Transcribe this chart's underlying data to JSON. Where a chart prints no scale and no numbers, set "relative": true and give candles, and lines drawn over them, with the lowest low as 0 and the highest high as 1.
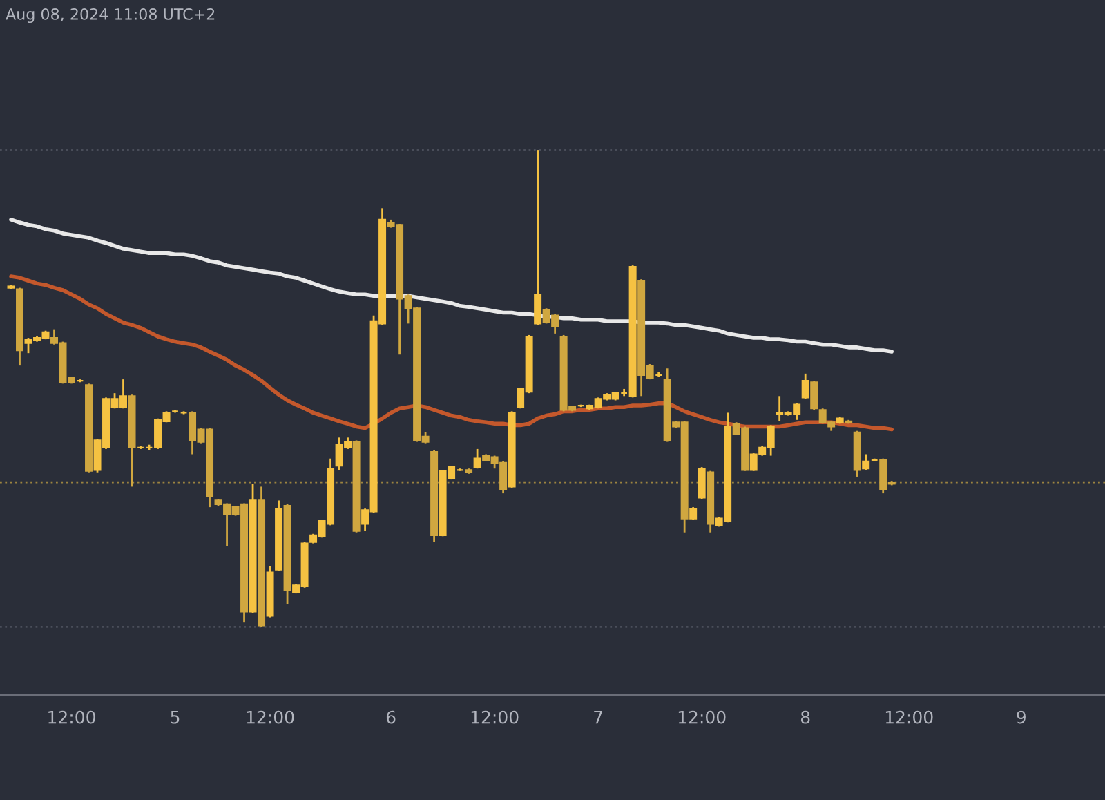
{
  "chart_data": {
    "type": "candlestick",
    "relative": true,
    "colors": [
      "#f5c242",
      "#d0a740",
      "#f5c242",
      "#f5c242",
      "#f5c242",
      "#d0a740",
      "#d0a740",
      "#d0a740",
      "#f5c242",
      "#d0a740",
      "#f5c242",
      "#f5c242",
      "#f5c242",
      "#f5c242",
      "#d0a740",
      "#f5c242",
      "#f5c242",
      "#f5c242",
      "#f5c242",
      "#f5c242",
      "#f5c242",
      "#d0a740",
      "#d0a740",
      "#d0a740",
      "#d0a740",
      "#d0a740",
      "#d0a740",
      "#d0a740",
      "#f5c242",
      "#d0a740",
      "#f5c242",
      "#f5c242",
      "#d0a740",
      "#f5c242",
      "#f5c242",
      "#f5c242",
      "#f5c242",
      "#f5c242",
      "#f5c242",
      "#f5c242",
      "#d0a740",
      "#f5c242",
      "#f5c242",
      "#f5c242",
      "#d0a740",
      "#d0a740",
      "#d0a740",
      "#d0a740",
      "#d0a740",
      "#d0a740",
      "#f5c242",
      "#f5c242",
      "#f5c242",
      "#d0a740",
      "#f5c242",
      "#d0a740",
      "#d0a740",
      "#d0a740",
      "#f5c242",
      "#f5c242",
      "#f5c242",
      "#f5c242",
      "#d0a740",
      "#d0a740",
      "#d0a740",
      "#d0a740",
      "#f5c242",
      "#f5c242",
      "#f5c242",
      "#f5c242",
      "#f5c242",
      "#f5c242",
      "#f5c242",
      "#d0a740",
      "#d0a740",
      "#f5c242",
      "#d0a740",
      "#d0a740",
      "#d0a740",
      "#f5c242",
      "#f5c242",
      "#d0a740",
      "#f5c242",
      "#f5c242",
      "#d0a740",
      "#d0a740",
      "#f5c242",
      "#f5c242",
      "#f5c242",
      "#f5c242",
      "#f5c242",
      "#f5c242",
      "#f5c242",
      "#d0a740",
      "#d0a740",
      "#d0a740",
      "#f5c242",
      "#d0a740",
      "#d0a740",
      "#f5c242",
      "#f5c242",
      "#d0a740",
      "#d0a740",
      null,
      null,
      null,
      null,
      null,
      null,
      null,
      null,
      null,
      null,
      null,
      null,
      null,
      null,
      null,
      null,
      null,
      null,
      null,
      null,
      null,
      null,
      null,
      null
    ],
    "annotations": [
      "Aug 08, 2024 11:08 UTC+2"
    ],
    "categories": [
      null,
      null,
      null,
      null,
      null,
      null,
      null,
      "12:00",
      null,
      null,
      null,
      null,
      null,
      null,
      null,
      null,
      null,
      null,
      null,
      "5",
      null,
      null,
      null,
      null,
      null,
      null,
      null,
      null,
      null,
      null,
      "12:00",
      null,
      null,
      null,
      null,
      null,
      null,
      null,
      null,
      null,
      null,
      null,
      null,
      null,
      "6",
      null,
      null,
      null,
      null,
      null,
      null,
      null,
      null,
      null,
      null,
      null,
      "12:00",
      null,
      null,
      null,
      null,
      null,
      null,
      null,
      null,
      null,
      null,
      null,
      "7",
      null,
      null,
      null,
      null,
      null,
      null,
      null,
      null,
      null,
      null,
      null,
      "12:00",
      null,
      null,
      null,
      null,
      null,
      null,
      null,
      null,
      null,
      null,
      null,
      "8",
      null,
      null,
      null,
      null,
      null,
      null,
      null,
      null,
      null,
      null,
      null,
      "12:00",
      null,
      null,
      null,
      null,
      null,
      null,
      null,
      null,
      null,
      null,
      null,
      null,
      "9",
      null,
      null,
      null,
      null,
      null,
      null,
      null,
      null,
      null
    ],
    "ohlc": [
      [
        0.711,
        0.717,
        0.708,
        0.714
      ],
      [
        0.708,
        0.711,
        0.548,
        0.58
      ],
      [
        0.595,
        0.606,
        0.574,
        0.603
      ],
      [
        0.601,
        0.609,
        0.598,
        0.606
      ],
      [
        0.606,
        0.621,
        0.603,
        0.618
      ],
      [
        0.606,
        0.624,
        0.592,
        0.595
      ],
      [
        0.595,
        0.598,
        0.51,
        0.513
      ],
      [
        0.522,
        0.525,
        0.51,
        0.513
      ],
      [
        0.516,
        0.519,
        0.513,
        0.516
      ],
      [
        0.507,
        0.51,
        0.324,
        0.327
      ],
      [
        0.329,
        0.394,
        0.324,
        0.391
      ],
      [
        0.376,
        0.481,
        0.373,
        0.478
      ],
      [
        0.461,
        0.49,
        0.458,
        0.478
      ],
      [
        0.461,
        0.519,
        0.458,
        0.484
      ],
      [
        0.484,
        0.487,
        0.294,
        0.376
      ],
      [
        0.376,
        0.379,
        0.373,
        0.376
      ],
      [
        0.376,
        0.382,
        0.37,
        0.376
      ],
      [
        0.376,
        0.437,
        0.373,
        0.434
      ],
      [
        0.431,
        0.452,
        0.429,
        0.449
      ],
      [
        0.452,
        0.455,
        0.449,
        0.452
      ],
      [
        0.449,
        0.452,
        0.446,
        0.449
      ],
      [
        0.449,
        0.452,
        0.362,
        0.391
      ],
      [
        0.414,
        0.417,
        0.385,
        0.388
      ],
      [
        0.414,
        0.417,
        0.251,
        0.274
      ],
      [
        0.265,
        0.268,
        0.254,
        0.257
      ],
      [
        0.257,
        0.259,
        0.169,
        0.236
      ],
      [
        0.251,
        0.254,
        0.233,
        0.236
      ],
      [
        0.257,
        0.259,
        0.009,
        0.032
      ],
      [
        0.032,
        0.3,
        0.029,
        0.265
      ],
      [
        0.265,
        0.294,
        0,
        0.003
      ],
      [
        0.023,
        0.128,
        0.02,
        0.114
      ],
      [
        0.12,
        0.265,
        0.117,
        0.248
      ],
      [
        0.254,
        0.257,
        0.047,
        0.076
      ],
      [
        0.073,
        0.09,
        0.07,
        0.087
      ],
      [
        0.085,
        0.178,
        0.082,
        0.175
      ],
      [
        0.178,
        0.195,
        0.175,
        0.192
      ],
      [
        0.19,
        0.224,
        0.187,
        0.222
      ],
      [
        0.216,
        0.353,
        0.213,
        0.332
      ],
      [
        0.338,
        0.397,
        0.329,
        0.382
      ],
      [
        0.376,
        0.397,
        0.373,
        0.388
      ],
      [
        0.388,
        0.391,
        0.198,
        0.201
      ],
      [
        0.216,
        0.248,
        0.201,
        0.245
      ],
      [
        0.242,
        0.653,
        0.239,
        0.641
      ],
      [
        0.636,
        0.878,
        0.633,
        0.854
      ],
      [
        0.848,
        0.854,
        0.837,
        0.84
      ],
      [
        0.843,
        0.845,
        0.571,
        0.688
      ],
      [
        0.694,
        0.697,
        0.636,
        0.668
      ],
      [
        0.668,
        0.671,
        0.388,
        0.391
      ],
      [
        0.399,
        0.408,
        0.385,
        0.388
      ],
      [
        0.367,
        0.37,
        0.178,
        0.192
      ],
      [
        0.192,
        0.329,
        0.19,
        0.327
      ],
      [
        0.312,
        0.338,
        0.309,
        0.335
      ],
      [
        0.329,
        0.332,
        0.327,
        0.329
      ],
      [
        0.329,
        0.332,
        0.321,
        0.324
      ],
      [
        0.335,
        0.373,
        0.332,
        0.353
      ],
      [
        0.359,
        0.362,
        0.347,
        0.35
      ],
      [
        0.356,
        0.359,
        0.332,
        0.344
      ],
      [
        0.344,
        0.347,
        0.28,
        0.289
      ],
      [
        0.294,
        0.452,
        0.292,
        0.449
      ],
      [
        0.461,
        0.501,
        0.458,
        0.499
      ],
      [
        0.493,
        0.612,
        0.49,
        0.609
      ],
      [
        0.636,
        1,
        0.633,
        0.697
      ],
      [
        0.665,
        0.668,
        0.636,
        0.638
      ],
      [
        0.653,
        0.656,
        0.615,
        0.63
      ],
      [
        0.609,
        0.612,
        0.452,
        0.455
      ],
      [
        0.461,
        0.464,
        0.452,
        0.455
      ],
      [
        0.464,
        0.466,
        0.461,
        0.464
      ],
      [
        0.458,
        0.466,
        0.455,
        0.464
      ],
      [
        0.461,
        0.481,
        0.458,
        0.478
      ],
      [
        0.478,
        0.49,
        0.475,
        0.487
      ],
      [
        0.478,
        0.493,
        0.475,
        0.49
      ],
      [
        0.49,
        0.499,
        0.484,
        0.49
      ],
      [
        0.484,
        0.758,
        0.481,
        0.755
      ],
      [
        0.726,
        0.729,
        0.484,
        0.528
      ],
      [
        0.548,
        0.551,
        0.519,
        0.522
      ],
      [
        0.528,
        0.534,
        0.525,
        0.528
      ],
      [
        0.519,
        0.542,
        0.388,
        0.391
      ],
      [
        0.429,
        0.431,
        0.417,
        0.42
      ],
      [
        0.429,
        0.431,
        0.198,
        0.227
      ],
      [
        0.227,
        0.251,
        0.224,
        0.248
      ],
      [
        0.271,
        0.335,
        0.268,
        0.332
      ],
      [
        0.324,
        0.327,
        0.198,
        0.216
      ],
      [
        0.213,
        0.23,
        0.21,
        0.227
      ],
      [
        0.222,
        0.449,
        0.219,
        0.42
      ],
      [
        0.426,
        0.429,
        0.402,
        0.405
      ],
      [
        0.417,
        0.42,
        0.327,
        0.329
      ],
      [
        0.329,
        0.364,
        0.327,
        0.362
      ],
      [
        0.362,
        0.379,
        0.359,
        0.376
      ],
      [
        0.376,
        0.423,
        0.359,
        0.42
      ],
      [
        0.446,
        0.484,
        0.431,
        0.449
      ],
      [
        0.446,
        0.452,
        0.443,
        0.449
      ],
      [
        0.446,
        0.469,
        0.434,
        0.466
      ],
      [
        0.481,
        0.531,
        0.478,
        0.516
      ],
      [
        0.513,
        0.516,
        0.455,
        0.458
      ],
      [
        0.455,
        0.458,
        0.426,
        0.429
      ],
      [
        0.429,
        0.431,
        0.411,
        0.42
      ],
      [
        0.429,
        0.44,
        0.426,
        0.437
      ],
      [
        0.431,
        0.434,
        0.426,
        0.429
      ],
      [
        0.408,
        0.411,
        0.315,
        0.329
      ],
      [
        0.332,
        0.362,
        0.329,
        0.347
      ],
      [
        0.35,
        0.353,
        0.347,
        0.35
      ],
      [
        0.35,
        0.353,
        0.28,
        0.289
      ],
      [
        0.303,
        0.306,
        0.297,
        0.3
      ],
      null,
      null,
      null,
      null,
      null,
      null,
      null,
      null,
      null,
      null,
      null,
      null,
      null,
      null,
      null,
      null,
      null,
      null,
      null,
      null,
      null,
      null,
      null,
      null
    ],
    "series": [
      {
        "type": "line",
        "color": "#e8e8e8",
        "values": [
          0.854,
          0.848,
          0.843,
          0.84,
          0.834,
          0.831,
          0.825,
          0.822,
          0.819,
          0.816,
          0.81,
          0.805,
          0.799,
          0.793,
          0.79,
          0.787,
          0.784,
          0.784,
          0.784,
          0.781,
          0.781,
          0.778,
          0.773,
          0.767,
          0.764,
          0.758,
          0.755,
          0.752,
          0.749,
          0.746,
          0.743,
          0.741,
          0.735,
          0.732,
          0.726,
          0.72,
          0.714,
          0.708,
          0.703,
          0.7,
          0.697,
          0.697,
          0.694,
          0.694,
          0.694,
          0.694,
          0.694,
          0.691,
          0.688,
          0.685,
          0.682,
          0.679,
          0.673,
          0.671,
          0.668,
          0.665,
          0.662,
          0.659,
          0.659,
          0.656,
          0.656,
          0.653,
          0.65,
          0.65,
          0.647,
          0.647,
          0.644,
          0.644,
          0.644,
          0.641,
          0.641,
          0.641,
          0.641,
          0.638,
          0.638,
          0.638,
          0.636,
          0.633,
          0.633,
          0.63,
          0.627,
          0.624,
          0.621,
          0.615,
          0.612,
          0.609,
          0.606,
          0.606,
          0.603,
          0.603,
          0.601,
          0.598,
          0.598,
          0.595,
          0.592,
          0.592,
          0.589,
          0.586,
          0.586,
          0.583,
          0.58,
          0.58,
          0.577,
          null,
          null,
          null,
          null,
          null,
          null,
          null,
          null,
          null,
          null,
          null,
          null,
          null,
          null,
          null,
          null,
          null,
          null,
          null,
          null,
          null,
          null,
          null,
          null
        ]
      },
      {
        "type": "line",
        "color": "#c4582c",
        "values": [
          0.735,
          0.732,
          0.726,
          0.72,
          0.717,
          0.711,
          0.706,
          0.697,
          0.688,
          0.676,
          0.668,
          0.656,
          0.647,
          0.638,
          0.633,
          0.627,
          0.618,
          0.609,
          0.603,
          0.598,
          0.595,
          0.592,
          0.586,
          0.577,
          0.569,
          0.56,
          0.548,
          0.539,
          0.528,
          0.516,
          0.501,
          0.487,
          0.475,
          0.466,
          0.458,
          0.449,
          0.443,
          0.437,
          0.431,
          0.426,
          0.42,
          0.417,
          0.426,
          0.437,
          0.449,
          0.458,
          0.461,
          0.464,
          0.461,
          0.455,
          0.449,
          0.443,
          0.44,
          0.434,
          0.431,
          0.429,
          0.426,
          0.426,
          0.423,
          0.423,
          0.426,
          0.437,
          0.443,
          0.446,
          0.452,
          0.452,
          0.455,
          0.455,
          0.458,
          0.458,
          0.461,
          0.461,
          0.464,
          0.464,
          0.466,
          0.469,
          0.469,
          0.461,
          0.452,
          0.446,
          0.44,
          0.434,
          0.429,
          0.426,
          0.423,
          0.42,
          0.42,
          0.42,
          0.42,
          0.42,
          0.423,
          0.426,
          0.429,
          0.429,
          0.429,
          0.429,
          0.426,
          0.423,
          0.423,
          0.42,
          0.417,
          0.417,
          0.414,
          null,
          null,
          null,
          null,
          null,
          null,
          null,
          null,
          null,
          null,
          null,
          null,
          null,
          null,
          null,
          null,
          null,
          null,
          null,
          null,
          null,
          null,
          null,
          null
        ]
      }
    ],
    "ref_lines": [
      {
        "axis": "y",
        "value": 1,
        "color": "#4a4e5a",
        "line_style": "dotted"
      },
      {
        "axis": "y",
        "value": 0,
        "color": "#4a4e5a",
        "line_style": "dotted"
      },
      {
        "axis": "y",
        "value": 0.303,
        "color": "#9c8440",
        "line_style": "dotted"
      }
    ]
  }
}
